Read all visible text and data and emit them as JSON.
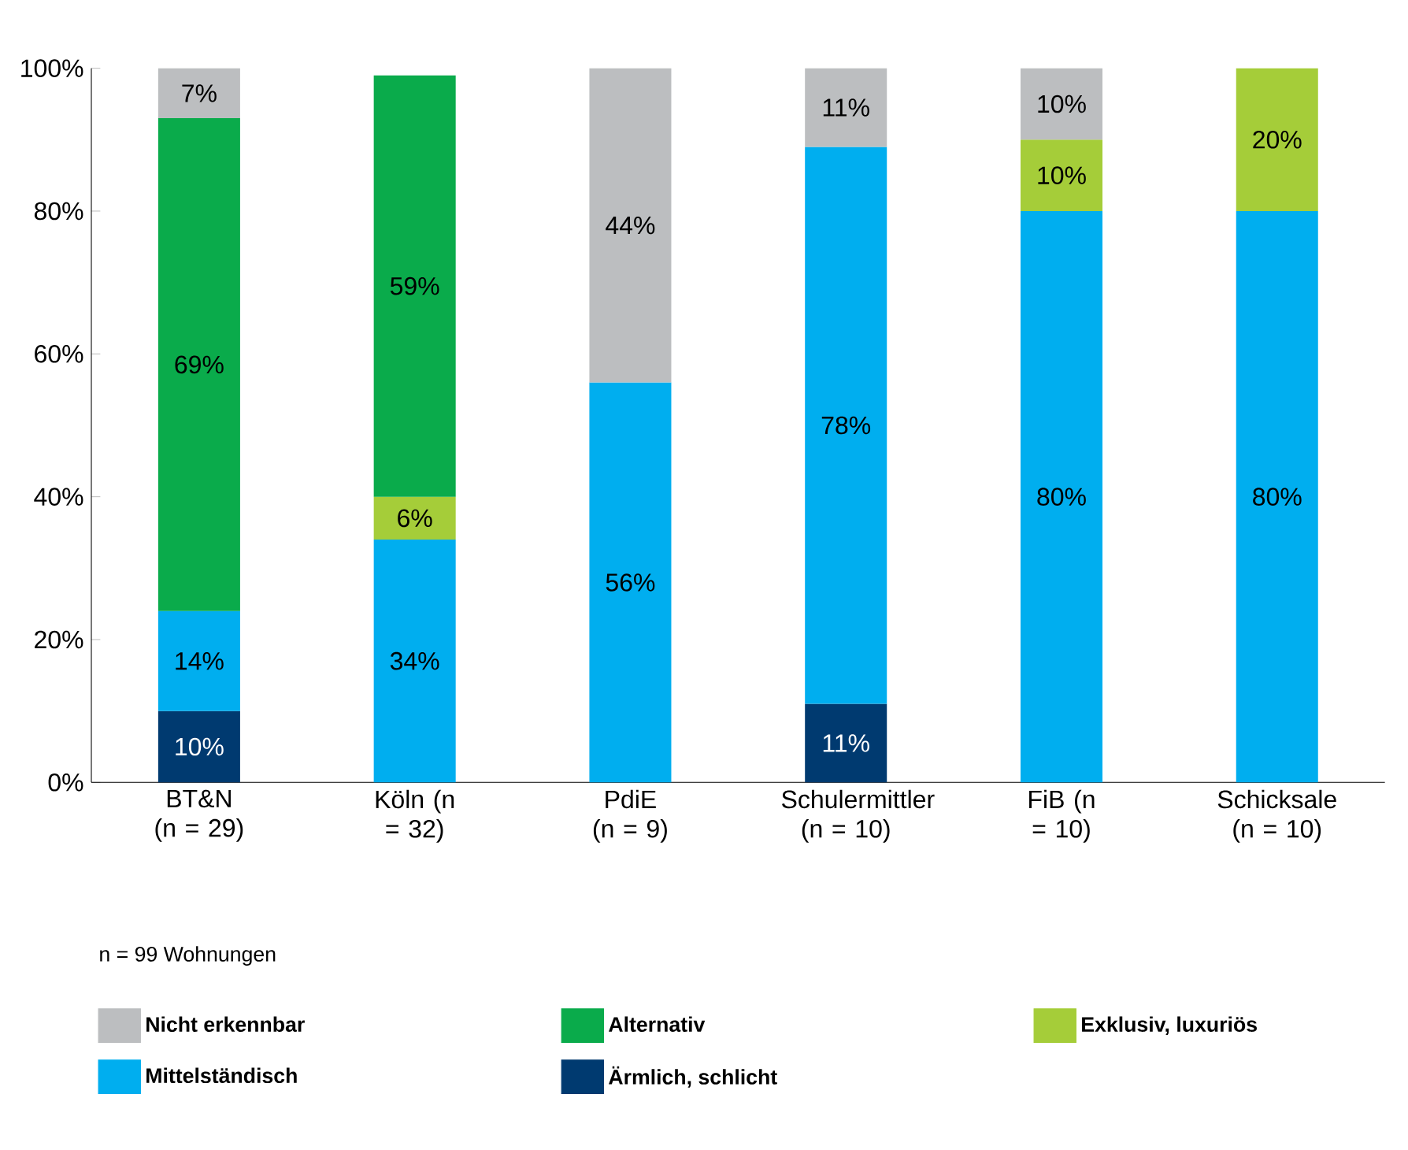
{
  "chart_data": {
    "type": "bar",
    "stacked": true,
    "categories": [
      "BT&N (n = 29)",
      "Köln (n = 32)",
      "PdiE (n = 9)",
      "Schulermittler (n = 10)",
      "FiB (n = 10)",
      "Schicksale (n = 10)"
    ],
    "series": [
      {
        "name": "Ärmlich, schlicht",
        "color": "#003a70",
        "values": [
          10,
          null,
          null,
          11,
          null,
          null
        ],
        "value_labels": [
          "10%",
          null,
          null,
          "11%",
          null,
          null
        ]
      },
      {
        "name": "Mittelständisch",
        "color": "#00aeef",
        "values": [
          14,
          34,
          56,
          78,
          80,
          80
        ],
        "value_labels": [
          "14%",
          "34%",
          "56%",
          "78%",
          "80%",
          "80%"
        ]
      },
      {
        "name": "Exklusiv, luxuriös",
        "color": "#a5cd39",
        "values": [
          null,
          6,
          null,
          null,
          10,
          20
        ],
        "value_labels": [
          null,
          "6%",
          null,
          null,
          "10%",
          "20%"
        ]
      },
      {
        "name": "Alternativ",
        "color": "#0aab4b",
        "values": [
          69,
          59,
          null,
          null,
          null,
          null
        ],
        "value_labels": [
          "69%",
          "59%",
          null,
          null,
          null,
          null
        ]
      },
      {
        "name": "Nicht erkennbar",
        "color": "#bcbec0",
        "values": [
          7,
          null,
          44,
          11,
          10,
          null
        ],
        "value_labels": [
          "7%",
          null,
          "44%",
          "11%",
          "10%",
          null
        ]
      }
    ],
    "ylim": [
      0,
      100
    ],
    "yticks": [
      {
        "value": 0,
        "label": "0%"
      },
      {
        "value": 20,
        "label": "20%"
      },
      {
        "value": 40,
        "label": "40%"
      },
      {
        "value": 60,
        "label": "60%"
      },
      {
        "value": 80,
        "label": "80%"
      },
      {
        "value": 100,
        "label": "100%"
      }
    ],
    "legend": "bottom",
    "annotations": [
      "n = 99 Wohnungen"
    ]
  }
}
